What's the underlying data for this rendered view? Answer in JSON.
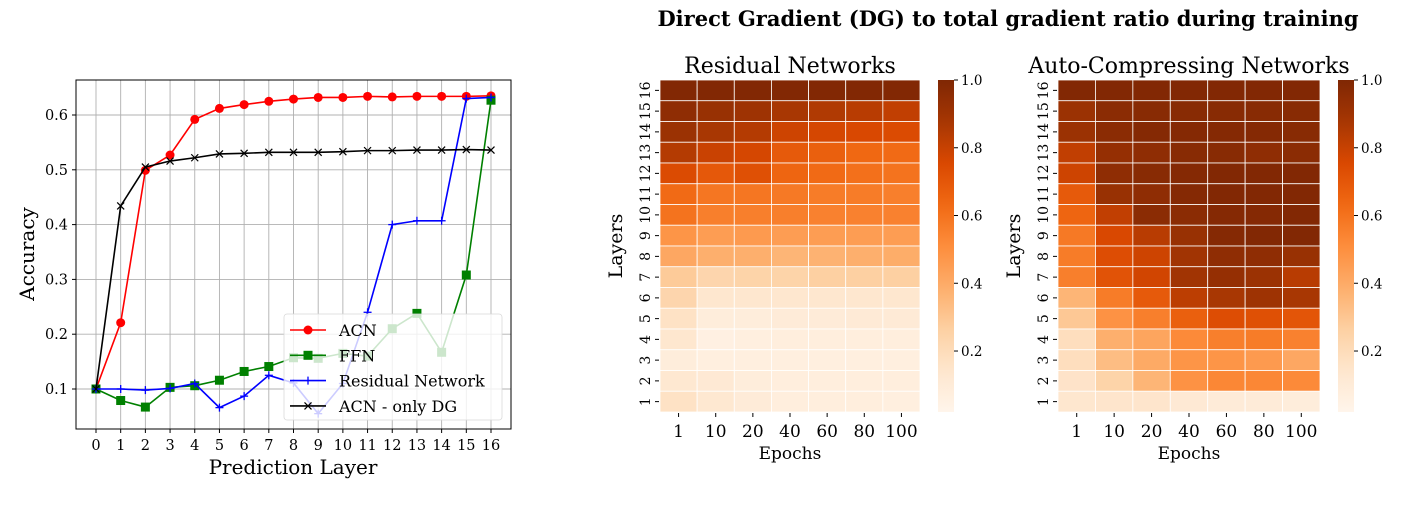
{
  "suptitle": "Direct Gradient (DG) to total gradient ratio during training",
  "chart_data": [
    {
      "type": "line",
      "title": "",
      "xlabel": "Prediction Layer",
      "ylabel": "Accuracy",
      "x": [
        0,
        1,
        2,
        3,
        4,
        5,
        6,
        7,
        8,
        9,
        10,
        11,
        12,
        13,
        14,
        15,
        16
      ],
      "xticks": [
        "0",
        "1",
        "2",
        "3",
        "4",
        "5",
        "6",
        "7",
        "8",
        "9",
        "10",
        "11",
        "12",
        "13",
        "14",
        "15",
        "16"
      ],
      "yticks": [
        "0.1",
        "0.2",
        "0.3",
        "0.4",
        "0.5",
        "0.6"
      ],
      "ylim": [
        0.035,
        0.665
      ],
      "grid": true,
      "legend_position": "lower right",
      "series": [
        {
          "name": "ACN",
          "color": "#ff0000",
          "marker": "circle",
          "values": [
            0.1,
            0.221,
            0.499,
            0.527,
            0.592,
            0.612,
            0.619,
            0.625,
            0.629,
            0.632,
            0.632,
            0.634,
            0.633,
            0.634,
            0.634,
            0.634,
            0.635
          ]
        },
        {
          "name": "FFN",
          "color": "#008000",
          "marker": "square",
          "values": [
            0.1,
            0.079,
            0.067,
            0.103,
            0.106,
            0.116,
            0.132,
            0.141,
            0.157,
            0.156,
            0.165,
            0.16,
            0.21,
            0.238,
            0.167,
            0.308,
            0.627
          ]
        },
        {
          "name": "Residual Network",
          "color": "#0000ff",
          "marker": "plus",
          "values": [
            0.1,
            0.1,
            0.098,
            0.101,
            0.11,
            0.066,
            0.087,
            0.125,
            0.111,
            0.055,
            0.11,
            0.24,
            0.4,
            0.407,
            0.407,
            0.63,
            0.632
          ]
        },
        {
          "name": "ACN - only DG",
          "color": "#000000",
          "marker": "x",
          "values": [
            0.1,
            0.434,
            0.505,
            0.516,
            0.522,
            0.529,
            0.53,
            0.532,
            0.532,
            0.532,
            0.533,
            0.535,
            0.535,
            0.536,
            0.536,
            0.537,
            0.536
          ]
        }
      ]
    },
    {
      "type": "heatmap",
      "title": "Residual Networks",
      "xlabel": "Epochs",
      "ylabel": "Layers",
      "x": [
        "1",
        "10",
        "20",
        "40",
        "60",
        "80",
        "100"
      ],
      "y": [
        "16",
        "15",
        "14",
        "13",
        "12",
        "11",
        "10",
        "9",
        "8",
        "7",
        "6",
        "5",
        "4",
        "3",
        "2",
        "1"
      ],
      "colormap": "Oranges",
      "colorbar_ticks": [
        "0.2",
        "0.4",
        "0.6",
        "0.8",
        "1.0"
      ],
      "vmin": 0.0,
      "vmax": 1.0,
      "values": [
        [
          0.99,
          0.99,
          0.99,
          0.99,
          0.99,
          0.99,
          0.99
        ],
        [
          0.95,
          0.92,
          0.9,
          0.87,
          0.85,
          0.83,
          0.81
        ],
        [
          0.91,
          0.87,
          0.84,
          0.78,
          0.76,
          0.75,
          0.74
        ],
        [
          0.84,
          0.79,
          0.76,
          0.68,
          0.66,
          0.63,
          0.62
        ],
        [
          0.74,
          0.69,
          0.72,
          0.64,
          0.62,
          0.6,
          0.59
        ],
        [
          0.62,
          0.58,
          0.58,
          0.57,
          0.56,
          0.56,
          0.55
        ],
        [
          0.59,
          0.55,
          0.55,
          0.55,
          0.54,
          0.54,
          0.54
        ],
        [
          0.47,
          0.44,
          0.45,
          0.44,
          0.44,
          0.44,
          0.44
        ],
        [
          0.4,
          0.37,
          0.37,
          0.35,
          0.36,
          0.37,
          0.38
        ],
        [
          0.27,
          0.22,
          0.23,
          0.23,
          0.25,
          0.25,
          0.25
        ],
        [
          0.22,
          0.12,
          0.12,
          0.12,
          0.12,
          0.12,
          0.12
        ],
        [
          0.15,
          0.07,
          0.07,
          0.08,
          0.08,
          0.09,
          0.09
        ],
        [
          0.12,
          0.04,
          0.05,
          0.06,
          0.06,
          0.06,
          0.06
        ],
        [
          0.07,
          0.05,
          0.05,
          0.05,
          0.05,
          0.05,
          0.05
        ],
        [
          0.11,
          0.1,
          0.07,
          0.06,
          0.06,
          0.06,
          0.06
        ],
        [
          0.15,
          0.11,
          0.08,
          0.06,
          0.06,
          0.06,
          0.05
        ]
      ]
    },
    {
      "type": "heatmap",
      "title": "Auto-Compressing Networks",
      "xlabel": "Epochs",
      "ylabel": "Layers",
      "x": [
        "1",
        "10",
        "20",
        "40",
        "60",
        "80",
        "100"
      ],
      "y": [
        "16",
        "15",
        "14",
        "13",
        "12",
        "11",
        "10",
        "9",
        "8",
        "7",
        "6",
        "5",
        "4",
        "3",
        "2",
        "1"
      ],
      "colormap": "Oranges",
      "colorbar_ticks": [
        "0.2",
        "0.4",
        "0.6",
        "0.8",
        "1.0"
      ],
      "vmin": 0.0,
      "vmax": 1.0,
      "values": [
        [
          0.99,
          0.99,
          0.99,
          0.99,
          0.99,
          0.99,
          0.99
        ],
        [
          0.91,
          0.96,
          0.97,
          0.97,
          0.97,
          0.97,
          0.97
        ],
        [
          0.91,
          0.96,
          0.98,
          0.98,
          0.98,
          0.98,
          0.97
        ],
        [
          0.81,
          0.93,
          0.95,
          0.97,
          0.97,
          0.95,
          0.96
        ],
        [
          0.78,
          0.95,
          0.97,
          0.98,
          0.99,
          0.99,
          0.99
        ],
        [
          0.68,
          0.92,
          0.95,
          0.98,
          0.99,
          0.99,
          0.99
        ],
        [
          0.64,
          0.81,
          0.96,
          0.96,
          0.98,
          0.98,
          0.99
        ],
        [
          0.57,
          0.75,
          0.83,
          0.92,
          0.98,
          0.99,
          0.99
        ],
        [
          0.56,
          0.73,
          0.78,
          0.89,
          0.95,
          0.95,
          0.92
        ],
        [
          0.55,
          0.71,
          0.77,
          0.89,
          0.93,
          0.91,
          0.83
        ],
        [
          0.35,
          0.56,
          0.68,
          0.82,
          0.87,
          0.9,
          0.87
        ],
        [
          0.28,
          0.48,
          0.55,
          0.66,
          0.73,
          0.72,
          0.7
        ],
        [
          0.17,
          0.37,
          0.41,
          0.51,
          0.55,
          0.56,
          0.54
        ],
        [
          0.17,
          0.32,
          0.39,
          0.47,
          0.47,
          0.45,
          0.4
        ],
        [
          0.14,
          0.23,
          0.35,
          0.48,
          0.52,
          0.52,
          0.51
        ],
        [
          0.12,
          0.13,
          0.13,
          0.1,
          0.08,
          0.08,
          0.07
        ]
      ]
    }
  ]
}
